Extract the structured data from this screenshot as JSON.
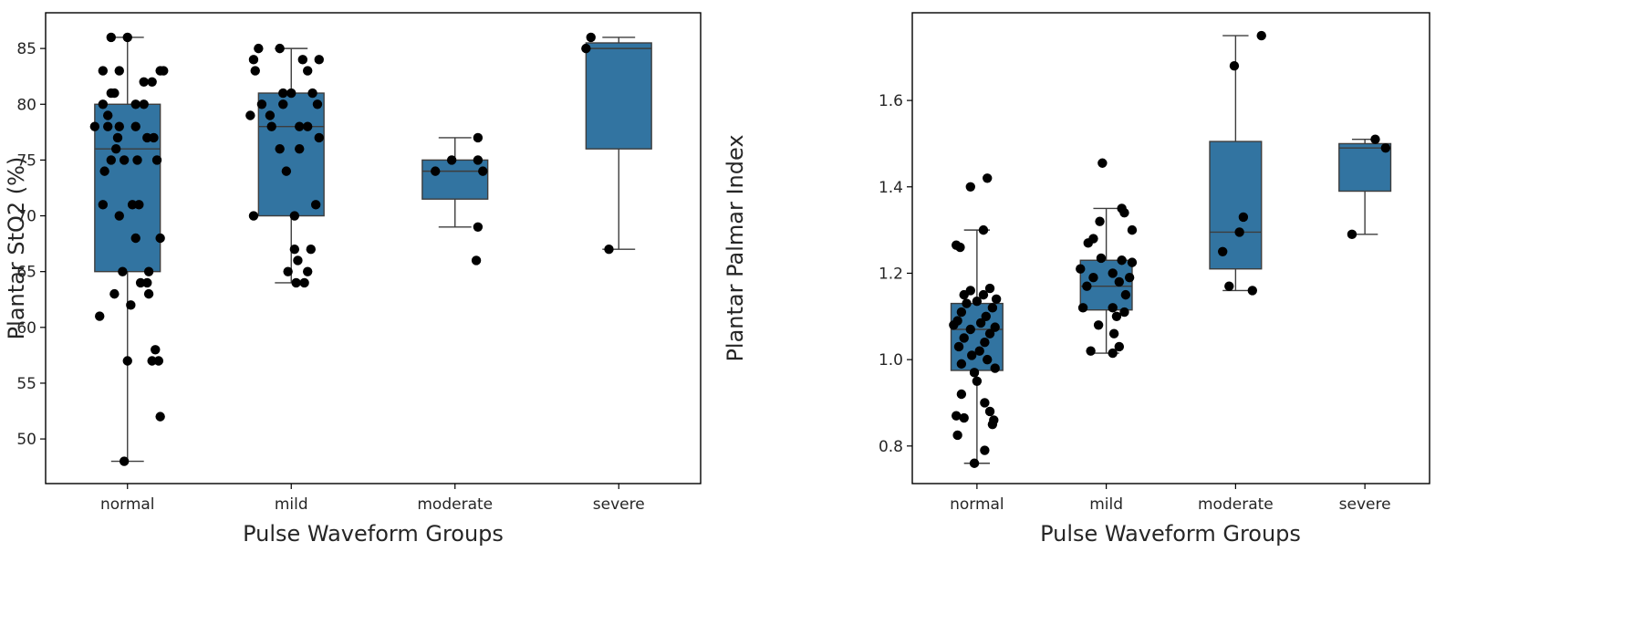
{
  "chart_data": [
    {
      "type": "box",
      "title": "",
      "xlabel": "Pulse Waveform Groups",
      "ylabel": "Plantar StO2 (%)",
      "categories": [
        "normal",
        "mild",
        "moderate",
        "severe"
      ],
      "ylim": [
        46,
        88.2
      ],
      "yticks": [
        50,
        55,
        60,
        65,
        70,
        75,
        80,
        85
      ],
      "ytick_labels": [
        "50",
        "55",
        "60",
        "65",
        "70",
        "75",
        "80",
        "85"
      ],
      "box_color": "#3274a1",
      "grid": false,
      "boxes": [
        {
          "category": "normal",
          "whisker_low": 48,
          "q1": 65,
          "median": 76,
          "q3": 80,
          "whisker_high": 86
        },
        {
          "category": "mild",
          "whisker_low": 64,
          "q1": 70,
          "median": 78,
          "q3": 81,
          "whisker_high": 85
        },
        {
          "category": "moderate",
          "whisker_low": 69,
          "q1": 71.5,
          "median": 74,
          "q3": 75,
          "whisker_high": 77
        },
        {
          "category": "severe",
          "whisker_low": 67,
          "q1": 76,
          "median": 85,
          "q3": 85.5,
          "whisker_high": 86
        }
      ],
      "points": [
        {
          "category": "normal",
          "values": [
            86,
            86,
            83,
            83,
            83,
            83,
            82,
            82,
            81,
            81,
            80,
            80,
            80,
            79,
            78,
            78,
            78,
            78,
            77,
            77,
            77,
            76,
            75,
            75,
            75,
            75,
            74,
            71,
            71,
            71,
            70,
            68,
            68,
            65,
            65,
            64,
            64,
            63,
            63,
            62,
            61,
            58,
            57,
            57,
            57,
            52,
            48
          ],
          "jitter": [
            -0.1,
            0.0,
            -0.15,
            -0.05,
            0.2,
            0.22,
            0.1,
            0.15,
            -0.1,
            -0.08,
            -0.15,
            0.05,
            0.1,
            -0.12,
            -0.2,
            -0.12,
            -0.05,
            0.05,
            -0.06,
            0.12,
            0.16,
            -0.07,
            -0.1,
            -0.02,
            0.06,
            0.18,
            -0.14,
            -0.15,
            0.03,
            0.07,
            -0.05,
            0.05,
            0.2,
            -0.03,
            0.13,
            0.08,
            0.12,
            -0.08,
            0.13,
            0.02,
            -0.17,
            0.17,
            0.0,
            0.15,
            0.19,
            0.2,
            -0.02
          ]
        },
        {
          "category": "mild",
          "values": [
            85,
            85,
            84,
            84,
            84,
            83,
            83,
            81,
            81,
            81,
            80,
            80,
            80,
            79,
            79,
            78,
            78,
            78,
            77,
            76,
            76,
            74,
            71,
            70,
            70,
            67,
            67,
            66,
            65,
            65,
            64,
            64
          ],
          "jitter": [
            -0.2,
            -0.07,
            -0.23,
            0.07,
            0.17,
            -0.22,
            0.1,
            -0.05,
            0.0,
            0.13,
            -0.18,
            -0.05,
            0.16,
            -0.25,
            -0.13,
            -0.12,
            0.05,
            0.1,
            0.17,
            -0.07,
            0.05,
            -0.03,
            0.15,
            -0.23,
            0.02,
            0.02,
            0.12,
            0.04,
            -0.02,
            0.1,
            0.03,
            0.08
          ]
        },
        {
          "category": "moderate",
          "values": [
            77,
            75,
            75,
            74,
            74,
            69,
            66
          ],
          "jitter": [
            0.14,
            -0.02,
            0.14,
            -0.12,
            0.17,
            0.14,
            0.13
          ]
        },
        {
          "category": "severe",
          "values": [
            86,
            85,
            67
          ],
          "jitter": [
            -0.17,
            -0.2,
            -0.06
          ]
        }
      ]
    },
    {
      "type": "box",
      "title": "",
      "xlabel": "Pulse Waveform Groups",
      "ylabel": "Plantar Palmar Index",
      "categories": [
        "normal",
        "mild",
        "moderate",
        "severe"
      ],
      "ylim": [
        0.713,
        1.803
      ],
      "yticks": [
        0.8,
        1.0,
        1.2,
        1.4,
        1.6
      ],
      "ytick_labels": [
        "0.8",
        "1.0",
        "1.2",
        "1.4",
        "1.6"
      ],
      "box_color": "#3274a1",
      "grid": false,
      "boxes": [
        {
          "category": "normal",
          "whisker_low": 0.76,
          "q1": 0.975,
          "median": 1.07,
          "q3": 1.13,
          "whisker_high": 1.3
        },
        {
          "category": "mild",
          "whisker_low": 1.015,
          "q1": 1.115,
          "median": 1.17,
          "q3": 1.23,
          "whisker_high": 1.35
        },
        {
          "category": "moderate",
          "whisker_low": 1.16,
          "q1": 1.21,
          "median": 1.295,
          "q3": 1.505,
          "whisker_high": 1.75
        },
        {
          "category": "severe",
          "whisker_low": 1.29,
          "q1": 1.39,
          "median": 1.49,
          "q3": 1.5,
          "whisker_high": 1.51
        }
      ],
      "points": [
        {
          "category": "normal",
          "values": [
            1.42,
            1.4,
            1.3,
            1.265,
            1.26,
            1.165,
            1.16,
            1.15,
            1.15,
            1.14,
            1.135,
            1.13,
            1.12,
            1.11,
            1.1,
            1.09,
            1.085,
            1.08,
            1.075,
            1.07,
            1.06,
            1.05,
            1.04,
            1.03,
            1.02,
            1.01,
            1.0,
            0.99,
            0.98,
            0.97,
            0.95,
            0.92,
            0.9,
            0.88,
            0.87,
            0.865,
            0.86,
            0.85,
            0.825,
            0.79,
            0.76
          ],
          "jitter": [
            0.08,
            -0.05,
            0.05,
            -0.16,
            -0.13,
            0.1,
            -0.05,
            0.05,
            -0.1,
            0.15,
            0.0,
            -0.08,
            0.12,
            -0.12,
            0.07,
            -0.15,
            0.03,
            -0.18,
            0.14,
            -0.05,
            0.1,
            -0.1,
            0.06,
            -0.14,
            0.02,
            -0.04,
            0.08,
            -0.12,
            0.14,
            -0.02,
            0.0,
            -0.12,
            0.06,
            0.1,
            -0.16,
            -0.1,
            0.13,
            0.12,
            -0.15,
            0.06,
            -0.02
          ]
        },
        {
          "category": "mild",
          "values": [
            1.455,
            1.35,
            1.34,
            1.32,
            1.3,
            1.28,
            1.27,
            1.235,
            1.23,
            1.225,
            1.21,
            1.2,
            1.19,
            1.19,
            1.18,
            1.17,
            1.15,
            1.12,
            1.12,
            1.11,
            1.1,
            1.08,
            1.06,
            1.03,
            1.02,
            1.015
          ],
          "jitter": [
            -0.03,
            0.12,
            0.14,
            -0.05,
            0.2,
            -0.1,
            -0.14,
            -0.04,
            0.12,
            0.2,
            -0.2,
            0.05,
            0.18,
            -0.1,
            0.1,
            -0.15,
            0.15,
            -0.18,
            0.05,
            0.14,
            0.08,
            -0.06,
            0.06,
            0.1,
            -0.12,
            0.05
          ]
        },
        {
          "category": "moderate",
          "values": [
            1.75,
            1.68,
            1.33,
            1.295,
            1.25,
            1.17,
            1.16
          ],
          "jitter": [
            0.2,
            -0.01,
            0.06,
            0.03,
            -0.1,
            -0.05,
            0.13
          ]
        },
        {
          "category": "severe",
          "values": [
            1.51,
            1.49,
            1.29
          ],
          "jitter": [
            0.08,
            0.16,
            -0.1
          ]
        }
      ]
    }
  ]
}
